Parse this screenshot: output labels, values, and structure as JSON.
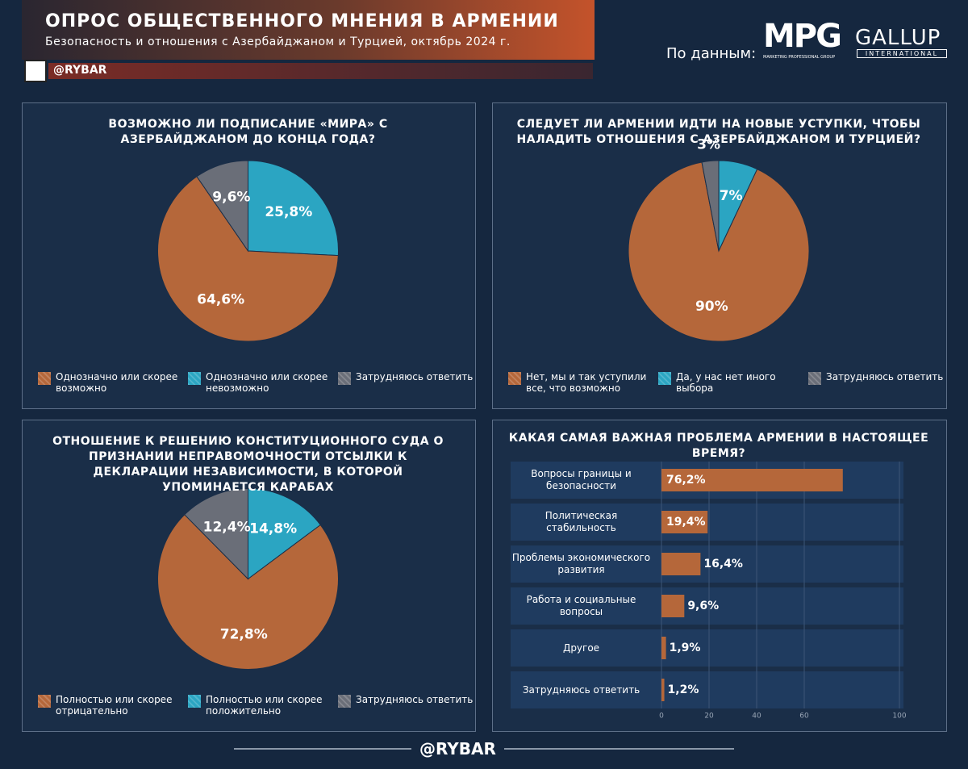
{
  "header": {
    "title": "ОПРОС ОБЩЕСТВЕННОГО МНЕНИЯ В АРМЕНИИ",
    "subtitle": "Безопасность и отношения с Азербайджаном и Турцией, октябрь 2024 г.",
    "channel": "@RYBAR",
    "source_label": "По данным:",
    "source_1": "MPG",
    "source_1_caption": "MARKETING PROFESSIONAL GROUP",
    "source_2": "GALLUP",
    "source_2_caption": "INTERNATIONAL",
    "footer": "@RYBAR"
  },
  "chart_data": [
    {
      "type": "pie",
      "title": "ВОЗМОЖНО ЛИ ПОДПИСАНИЕ «МИРА» С АЗЕРБАЙДЖАНОМ ДО КОНЦА ГОДА?",
      "categories": [
        "Однозначно или скорее возможно",
        "Однозначно или скорее невозможно",
        "Затрудняюсь ответить"
      ],
      "values": [
        64.6,
        25.8,
        9.6
      ],
      "value_labels": [
        "64,6%",
        "25,8%",
        "9,6%"
      ],
      "colors": [
        "#b5673a",
        "#2ba5c2",
        "#6a6e78"
      ]
    },
    {
      "type": "pie",
      "title": "СЛЕДУЕТ ЛИ АРМЕНИИ ИДТИ НА НОВЫЕ УСТУПКИ, ЧТОБЫ НАЛАДИТЬ ОТНОШЕНИЯ С АЗЕРБАЙДЖАНОМ И ТУРЦИЕЙ?",
      "categories": [
        "Нет, мы и так уступили все, что возможно",
        "Да, у нас нет иного выбора",
        "Затрудняюсь ответить"
      ],
      "values": [
        90,
        7,
        3
      ],
      "value_labels": [
        "90%",
        "7%",
        "3%"
      ],
      "colors": [
        "#b5673a",
        "#2ba5c2",
        "#6a6e78"
      ]
    },
    {
      "type": "pie",
      "title": "ОТНОШЕНИЕ К РЕШЕНИЮ КОНСТИТУЦИОННОГО СУДА О ПРИЗНАНИИ НЕПРАВОМОЧНОСТИ ОТСЫЛКИ К ДЕКЛАРАЦИИ НЕЗАВИСИМОСТИ, В КОТОРОЙ УПОМИНАЕТСЯ КАРАБАХ",
      "categories": [
        "Полностью или скорее отрицательно",
        "Полностью или скорее положительно",
        "Затрудняюсь ответить"
      ],
      "values": [
        72.8,
        14.8,
        12.4
      ],
      "value_labels": [
        "72,8%",
        "14,8%",
        "12,4%"
      ],
      "colors": [
        "#b5673a",
        "#2ba5c2",
        "#6a6e78"
      ]
    },
    {
      "type": "bar",
      "title": "КАКАЯ САМАЯ ВАЖНАЯ ПРОБЛЕМА АРМЕНИИ В НАСТОЯЩЕЕ ВРЕМЯ?",
      "categories": [
        "Вопросы границы и безопасности",
        "Политическая стабильность",
        "Проблемы экономического развития",
        "Работа и социальные вопросы",
        "Другое",
        "Затрудняюсь ответить"
      ],
      "values": [
        76.2,
        19.4,
        16.4,
        9.6,
        1.9,
        1.2
      ],
      "value_labels": [
        "76,2%",
        "19,4%",
        "16,4%",
        "9,6%",
        "1,9%",
        "1,2%"
      ],
      "color": "#b5673a",
      "xlim": [
        0,
        100
      ],
      "xticks": [
        0,
        20,
        40,
        60,
        100
      ]
    }
  ]
}
